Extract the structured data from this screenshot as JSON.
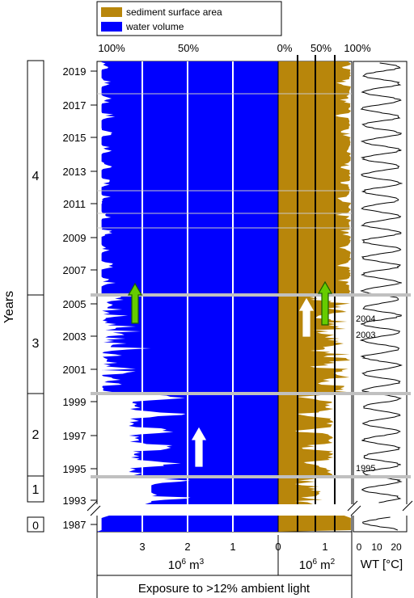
{
  "legend": [
    {
      "label": "sediment surface area",
      "color": "#b8860b"
    },
    {
      "label": "water volume",
      "color": "#0000ff"
    }
  ],
  "colors": {
    "water": "#0000ff",
    "sediment": "#b8860b",
    "phase_line": "#c0c0c0",
    "arrow_up_green": "#66cc00",
    "arrow_up_white": "#ffffff"
  },
  "top_axis": {
    "water_pct_ticks": [
      "100%",
      "50%"
    ],
    "sediment_pct_ticks": [
      "0%",
      "50%",
      "100%"
    ]
  },
  "year_ticks": [
    "2019",
    "2017",
    "2015",
    "2013",
    "2011",
    "2009",
    "2007",
    "2005",
    "2003",
    "2001",
    "1999",
    "1997",
    "1995",
    "1993",
    "1987"
  ],
  "phases": [
    {
      "label": "4"
    },
    {
      "label": "3"
    },
    {
      "label": "2"
    },
    {
      "label": "1"
    },
    {
      "label": "0"
    }
  ],
  "y_title": "Years",
  "wt_annotations": [
    "2004",
    "2003",
    "1995"
  ],
  "x_axis": {
    "water_ticks": [
      "3",
      "2",
      "1",
      "0"
    ],
    "sediment_ticks": [
      "0",
      "1"
    ],
    "wt_ticks": [
      "0",
      "10",
      "20"
    ],
    "water_unit": "10",
    "water_unit_exp": "6",
    "water_unit_tail": " m",
    "water_unit_tail_exp": "3",
    "sediment_unit": "10",
    "sediment_unit_exp": "6",
    "sediment_unit_tail": " m",
    "sediment_unit_tail_exp": "2",
    "wt_title": "WT [°C]",
    "bottom_title": "Exposure to >12% ambient light"
  },
  "chart_data": {
    "type": "area",
    "panels": [
      {
        "name": "water volume",
        "unit": "10^6 m^3",
        "xlim": [
          3.9,
          0
        ],
        "reversed": true
      },
      {
        "name": "sediment surface area",
        "unit": "10^6 m^2",
        "xlim": [
          0,
          1.55
        ]
      },
      {
        "name": "WT",
        "unit": "°C",
        "xlim": [
          -3,
          30
        ]
      }
    ],
    "years": [
      "1987",
      "1993",
      "1995",
      "1997",
      "1999",
      "2001",
      "2003",
      "2005",
      "2007",
      "2009",
      "2011",
      "2013",
      "2015",
      "2017",
      "2019"
    ],
    "phase_boundaries": [
      "1987/1992",
      "1994/1995",
      "1999/2000",
      "2005/2006"
    ],
    "arrows": [
      {
        "color": "green",
        "panel": "water volume",
        "year": 2005.8
      },
      {
        "color": "green",
        "panel": "sediment surface area",
        "year": 2005.8
      },
      {
        "color": "white",
        "panel": "sediment surface area",
        "year": 2004.4
      },
      {
        "color": "white",
        "panel": "water volume",
        "year": 1996
      }
    ]
  }
}
